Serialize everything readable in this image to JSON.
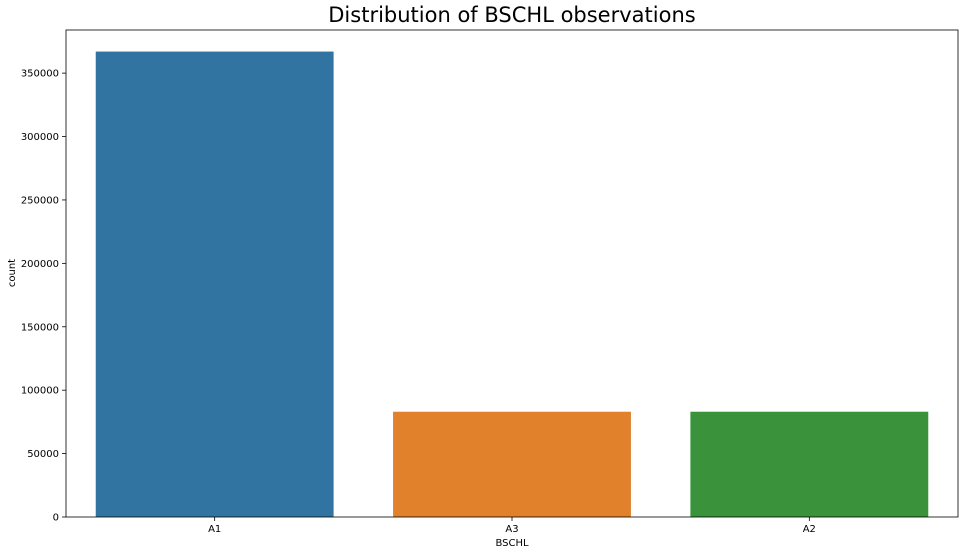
{
  "chart_data": {
    "type": "bar",
    "title": "Distribution of BSCHL observations",
    "xlabel": "BSCHL",
    "ylabel": "count",
    "categories": [
      "A1",
      "A3",
      "A2"
    ],
    "values": [
      367000,
      83000,
      83000
    ],
    "colors": [
      "#3274a1",
      "#e1812c",
      "#3a923a"
    ],
    "ylim": [
      0,
      384000
    ],
    "yticks": [
      0,
      50000,
      100000,
      150000,
      200000,
      250000,
      300000,
      350000
    ],
    "grid": false
  }
}
